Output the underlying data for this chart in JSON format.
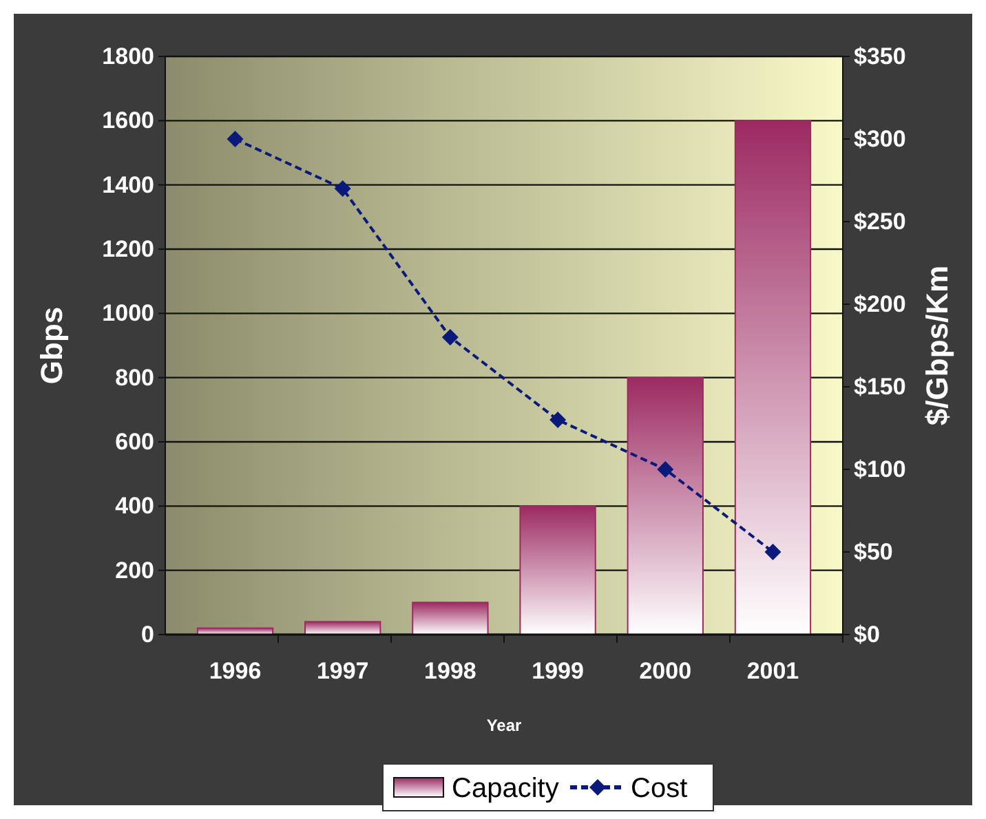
{
  "chart_data": {
    "type": "bar",
    "xlabel": "Year",
    "ylabel": "Gbps",
    "y2label": "$/Gbps/Km",
    "categories": [
      "1996",
      "1997",
      "1998",
      "1999",
      "2000",
      "2001"
    ],
    "series": [
      {
        "name": "Capacity",
        "color": "#9c2a62",
        "values": [
          20,
          40,
          100,
          400,
          800,
          1600
        ]
      },
      {
        "name": "Cost",
        "type": "line",
        "axis": "y2",
        "color": "#0a1a7a",
        "values": [
          300,
          270,
          180,
          130,
          100,
          50
        ],
        "marker": "diamond",
        "line_style": "dashed"
      }
    ],
    "ylim": [
      0,
      1800
    ],
    "yticks": [
      0,
      200,
      400,
      600,
      800,
      1000,
      1200,
      1400,
      1600,
      1800
    ],
    "y2lim": [
      0,
      350
    ],
    "y2ticks": [
      {
        "value": 0,
        "label": "$0"
      },
      {
        "value": 50,
        "label": "$50"
      },
      {
        "value": 100,
        "label": "$100"
      },
      {
        "value": 150,
        "label": "$150"
      },
      {
        "value": 200,
        "label": "$200"
      },
      {
        "value": 250,
        "label": "$250"
      },
      {
        "value": 300,
        "label": "$300"
      },
      {
        "value": 350,
        "label": "$350"
      }
    ],
    "grid": "y",
    "legend": "bottom"
  }
}
